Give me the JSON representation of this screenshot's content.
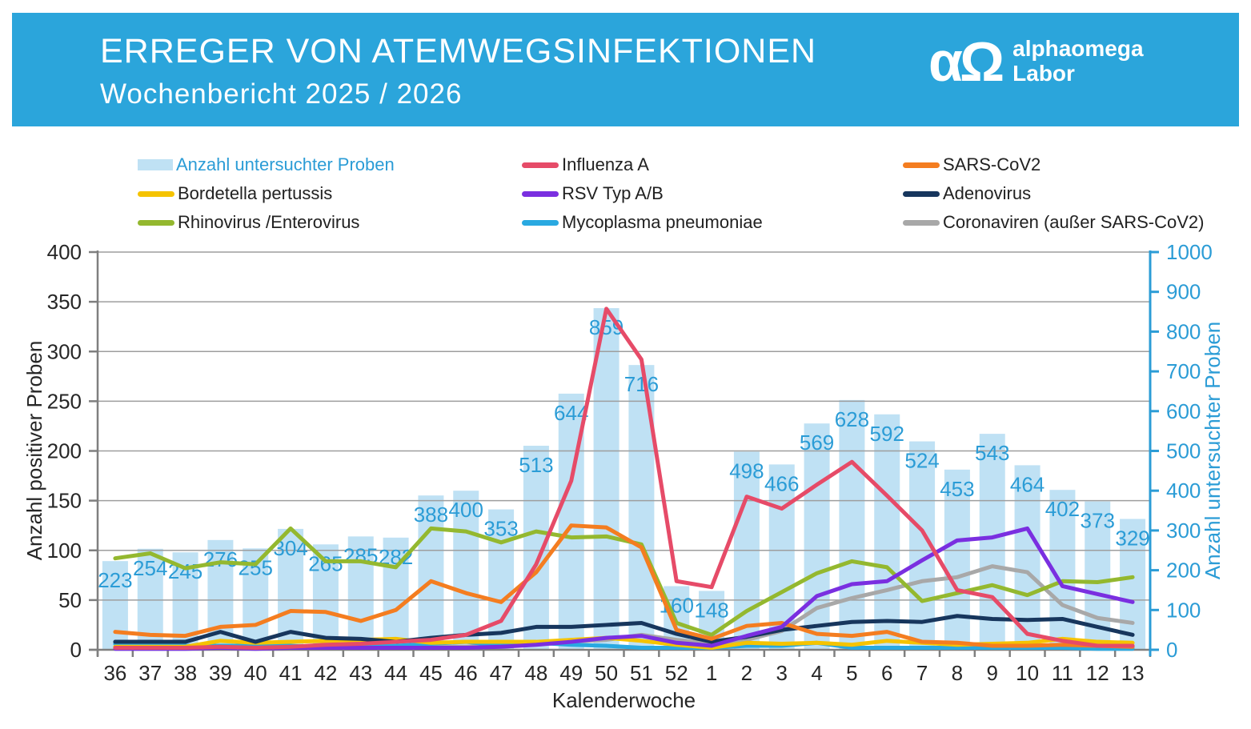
{
  "header": {
    "title": "ERREGER VON ATEMWEGSINFEKTIONEN",
    "subtitle": "Wochenbericht  2025 / 2026",
    "background": "#2BA5DB",
    "logo": {
      "symbol": "αΩ",
      "line1": "alphaomega",
      "line2": "Labor"
    }
  },
  "legend": {
    "columns": [
      [
        {
          "label": "Anzahl untersuchter Proben",
          "swatch": "bar",
          "color": "#BFE1F4",
          "label_color": "#2B9CD6"
        },
        {
          "label": "Bordetella pertussis",
          "swatch": "line",
          "color": "#F5C300"
        },
        {
          "label": "Rhinovirus /Enterovirus",
          "swatch": "line",
          "color": "#94B82F"
        }
      ],
      [
        {
          "label": "Influenza A",
          "swatch": "line",
          "color": "#E64B68"
        },
        {
          "label": "RSV Typ A/B",
          "swatch": "line",
          "color": "#7A2FE0"
        },
        {
          "label": "Mycoplasma pneumoniae",
          "swatch": "line",
          "color": "#29A9E1"
        }
      ],
      [
        {
          "label": "SARS-CoV2",
          "swatch": "line",
          "color": "#F47D20"
        },
        {
          "label": "Adenovirus",
          "swatch": "line",
          "color": "#17365D"
        },
        {
          "label": "Coronaviren (außer SARS-CoV2)",
          "swatch": "line",
          "color": "#A8A8A8"
        }
      ]
    ]
  },
  "chart_data": {
    "type": "bar+line combo",
    "x_title": "Kalenderwoche",
    "grid_color": "#9E9E9E",
    "axis_color": "#7F7F7F",
    "text_color": "#262626",
    "y_left": {
      "title": "Anzahl positiver Proben",
      "min": 0,
      "max": 400,
      "step": 50,
      "color": "#262626"
    },
    "y_right": {
      "title": "Anzahl untersuchter Proben",
      "min": 0,
      "max": 1000,
      "step": 100,
      "color": "#2B9CD6"
    },
    "categories": [
      "36",
      "37",
      "38",
      "39",
      "40",
      "41",
      "42",
      "43",
      "44",
      "45",
      "46",
      "47",
      "48",
      "49",
      "50",
      "51",
      "52",
      "1",
      "2",
      "3",
      "4",
      "5",
      "6",
      "7",
      "8",
      "9",
      "10",
      "11",
      "12",
      "13"
    ],
    "bars": {
      "name": "Anzahl untersuchter Proben",
      "axis": "right",
      "color": "#BFE1F4",
      "label_color": "#2B9CD6",
      "values": [
        223,
        254,
        245,
        276,
        255,
        304,
        265,
        285,
        282,
        388,
        400,
        353,
        513,
        644,
        859,
        716,
        160,
        148,
        498,
        466,
        569,
        628,
        592,
        524,
        453,
        543,
        464,
        402,
        373,
        329
      ]
    },
    "series": [
      {
        "name": "Coronaviren (außer SARS-CoV2)",
        "color": "#A8A8A8",
        "values": [
          2,
          2,
          2,
          2,
          2,
          3,
          3,
          2,
          2,
          3,
          3,
          5,
          6,
          8,
          10,
          15,
          10,
          6,
          10,
          19,
          42,
          52,
          60,
          69,
          73,
          84,
          78,
          45,
          32,
          27
        ]
      },
      {
        "name": "Mycoplasma pneumoniae",
        "color": "#29A9E1",
        "values": [
          6,
          6,
          4,
          4,
          4,
          4,
          2,
          3,
          4,
          6,
          8,
          4,
          7,
          5,
          4,
          2,
          2,
          2,
          4,
          4,
          7,
          2,
          2,
          2,
          2,
          2,
          2,
          2,
          1,
          1
        ]
      },
      {
        "name": "Bordetella pertussis",
        "color": "#F5C300",
        "values": [
          3,
          3,
          3,
          9,
          7,
          8,
          9,
          10,
          11,
          7,
          8,
          8,
          8,
          10,
          12,
          9,
          5,
          2,
          7,
          6,
          7,
          5,
          9,
          7,
          5,
          6,
          7,
          11,
          8,
          7
        ]
      },
      {
        "name": "Adenovirus",
        "color": "#17365D",
        "values": [
          8,
          8,
          8,
          18,
          8,
          18,
          12,
          11,
          8,
          12,
          15,
          17,
          23,
          23,
          25,
          27,
          16,
          8,
          13,
          20,
          24,
          28,
          29,
          28,
          34,
          31,
          30,
          31,
          23,
          15
        ]
      },
      {
        "name": "Rhinovirus /Enterovirus",
        "color": "#94B82F",
        "values": [
          92,
          97,
          82,
          88,
          86,
          122,
          89,
          89,
          83,
          122,
          119,
          108,
          119,
          113,
          114,
          106,
          27,
          15,
          39,
          58,
          77,
          89,
          83,
          49,
          57,
          65,
          55,
          69,
          68,
          73
        ]
      },
      {
        "name": "SARS-CoV2",
        "color": "#F47D20",
        "values": [
          18,
          15,
          14,
          23,
          25,
          39,
          38,
          29,
          40,
          69,
          57,
          48,
          78,
          125,
          123,
          103,
          20,
          11,
          24,
          27,
          16,
          14,
          18,
          8,
          7,
          4,
          4,
          5,
          4,
          3
        ]
      },
      {
        "name": "RSV Typ A/B",
        "color": "#7A2FE0",
        "values": [
          1,
          1,
          1,
          2,
          1,
          2,
          2,
          2,
          2,
          2,
          2,
          3,
          5,
          8,
          12,
          14,
          7,
          4,
          14,
          23,
          54,
          66,
          69,
          90,
          110,
          113,
          122,
          64,
          56,
          48
        ]
      },
      {
        "name": "Influenza A",
        "color": "#E64B68",
        "values": [
          2,
          2,
          2,
          3,
          2,
          3,
          5,
          6,
          8,
          10,
          15,
          29,
          86,
          170,
          343,
          292,
          69,
          63,
          154,
          142,
          166,
          189,
          155,
          120,
          60,
          53,
          16,
          9,
          4,
          4
        ]
      }
    ]
  }
}
